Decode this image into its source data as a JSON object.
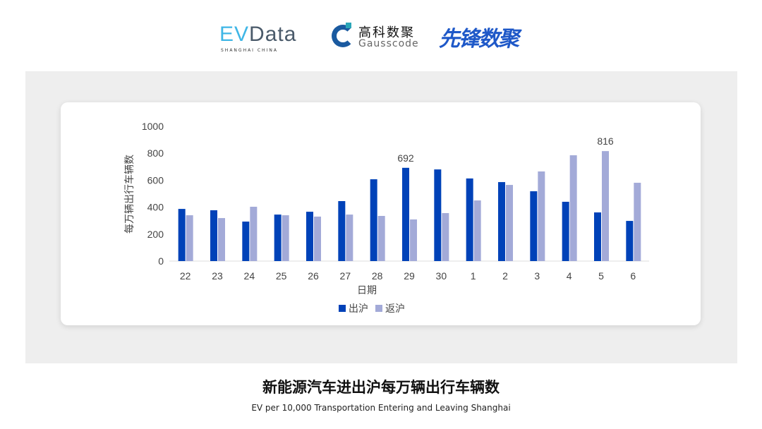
{
  "logos": {
    "evdata_ev": "EV",
    "evdata_rest": "Data",
    "evdata_sub": "SHANGHAI CHINA",
    "gauss_cn": "高科数聚",
    "gauss_en": "Gausscode",
    "xianfeng": "先锋数聚"
  },
  "caption": {
    "title": "新能源汽车进出沪每万辆出行车辆数",
    "subtitle": "EV per 10,000 Transportation Entering and Leaving Shanghai"
  },
  "colors": {
    "out": "#0042b8",
    "back": "#a3aad8"
  },
  "chart_data": {
    "type": "bar",
    "xlabel": "日期",
    "ylabel": "每万辆出行车辆数",
    "ylim": [
      0,
      1000
    ],
    "yticks": [
      0,
      200,
      400,
      600,
      800,
      1000
    ],
    "categories": [
      "22",
      "23",
      "24",
      "25",
      "26",
      "27",
      "28",
      "29",
      "30",
      "1",
      "2",
      "3",
      "4",
      "5",
      "6"
    ],
    "series": [
      {
        "name": "出沪",
        "values": [
          387,
          377,
          293,
          345,
          366,
          445,
          607,
          692,
          680,
          613,
          586,
          518,
          440,
          361,
          298
        ]
      },
      {
        "name": "返沪",
        "values": [
          340,
          319,
          403,
          340,
          330,
          345,
          335,
          309,
          356,
          450,
          565,
          665,
          785,
          816,
          581
        ]
      }
    ],
    "annotations": [
      {
        "category": "29",
        "series": "出沪",
        "text": "692"
      },
      {
        "category": "5",
        "series": "返沪",
        "text": "816"
      }
    ],
    "legend": "bottom",
    "grid": false
  }
}
